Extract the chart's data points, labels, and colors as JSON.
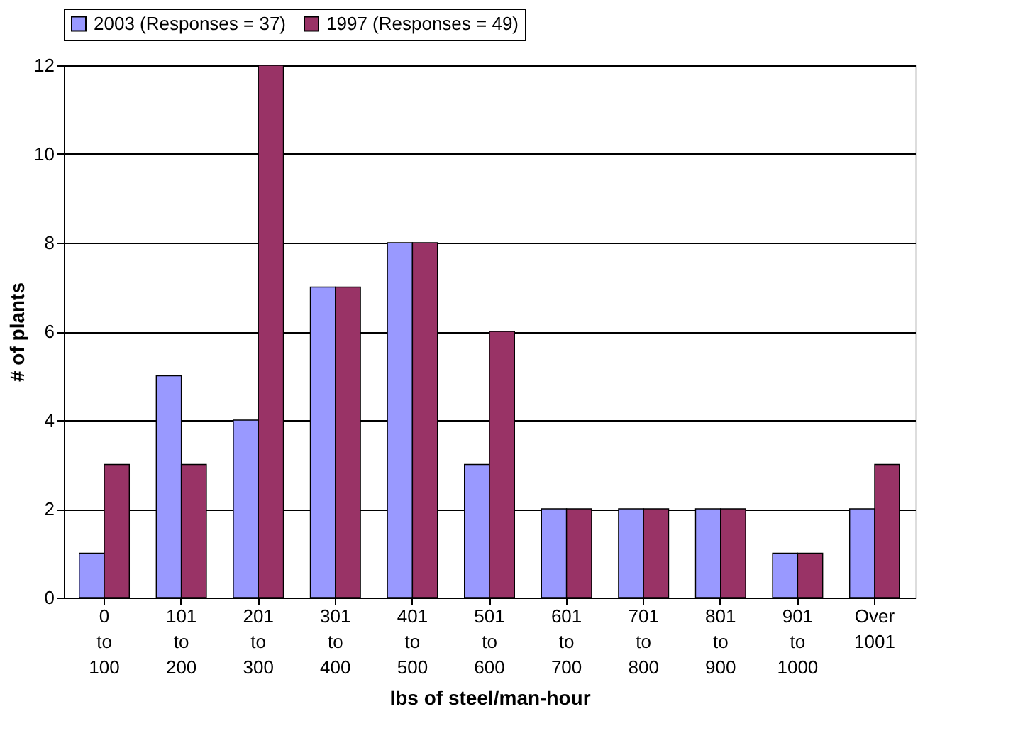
{
  "chart_data": {
    "type": "bar",
    "xlabel": "lbs of steel/man-hour",
    "ylabel": "# of plants",
    "categories": [
      "0 to 100",
      "101 to 200",
      "201 to 300",
      "301 to 400",
      "401 to 500",
      "501 to 600",
      "601 to 700",
      "701 to 800",
      "801 to 900",
      "901 to 1000",
      "Over 1001"
    ],
    "series": [
      {
        "name": "2003 (Responses = 37)",
        "color": "#9999ff",
        "values": [
          1,
          5,
          4,
          7,
          8,
          3,
          2,
          2,
          2,
          1,
          2
        ]
      },
      {
        "name": "1997 (Responses = 49)",
        "color": "#993366",
        "values": [
          3,
          3,
          12,
          7,
          8,
          6,
          2,
          2,
          2,
          1,
          3
        ]
      }
    ],
    "ylim": [
      0,
      12
    ],
    "yticks": [
      0,
      2,
      4,
      6,
      8,
      10,
      12
    ],
    "grid": "y",
    "legend": "top"
  }
}
